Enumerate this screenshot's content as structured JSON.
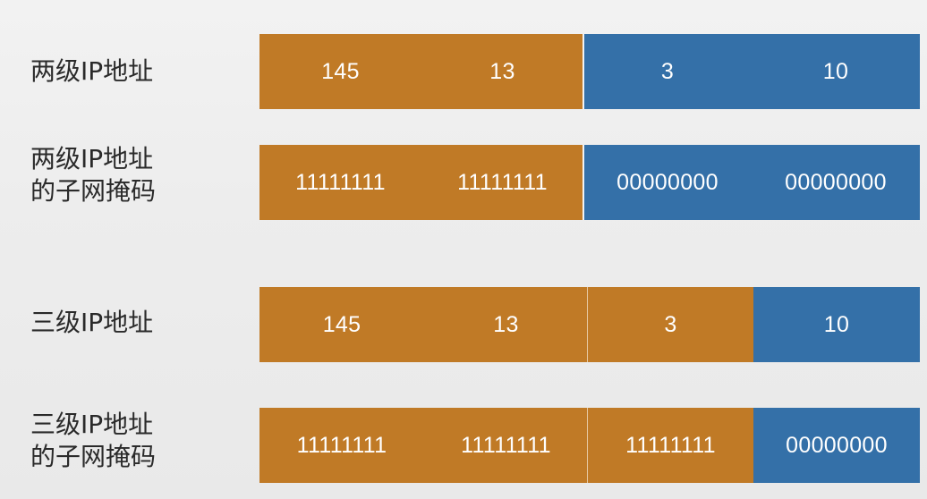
{
  "colors": {
    "network": "#c07a26",
    "host": "#3470a8"
  },
  "rows": [
    {
      "label": "两级IP地址",
      "segments": [
        {
          "text": "145",
          "part": "network"
        },
        {
          "text": "13",
          "part": "network"
        },
        {
          "text": "3",
          "part": "host"
        },
        {
          "text": "10",
          "part": "host"
        }
      ]
    },
    {
      "label": "两级IP地址\n的子网掩码",
      "segments": [
        {
          "text": "11111111",
          "part": "network"
        },
        {
          "text": "11111111",
          "part": "network"
        },
        {
          "text": "00000000",
          "part": "host"
        },
        {
          "text": "00000000",
          "part": "host"
        }
      ]
    },
    {
      "label": "三级IP地址",
      "segments": [
        {
          "text": "145",
          "part": "network"
        },
        {
          "text": "13",
          "part": "network"
        },
        {
          "text": "3",
          "part": "subnet"
        },
        {
          "text": "10",
          "part": "host"
        }
      ]
    },
    {
      "label": "三级IP地址\n的子网掩码",
      "segments": [
        {
          "text": "11111111",
          "part": "network"
        },
        {
          "text": "11111111",
          "part": "network"
        },
        {
          "text": "11111111",
          "part": "subnet"
        },
        {
          "text": "00000000",
          "part": "host"
        }
      ]
    }
  ]
}
